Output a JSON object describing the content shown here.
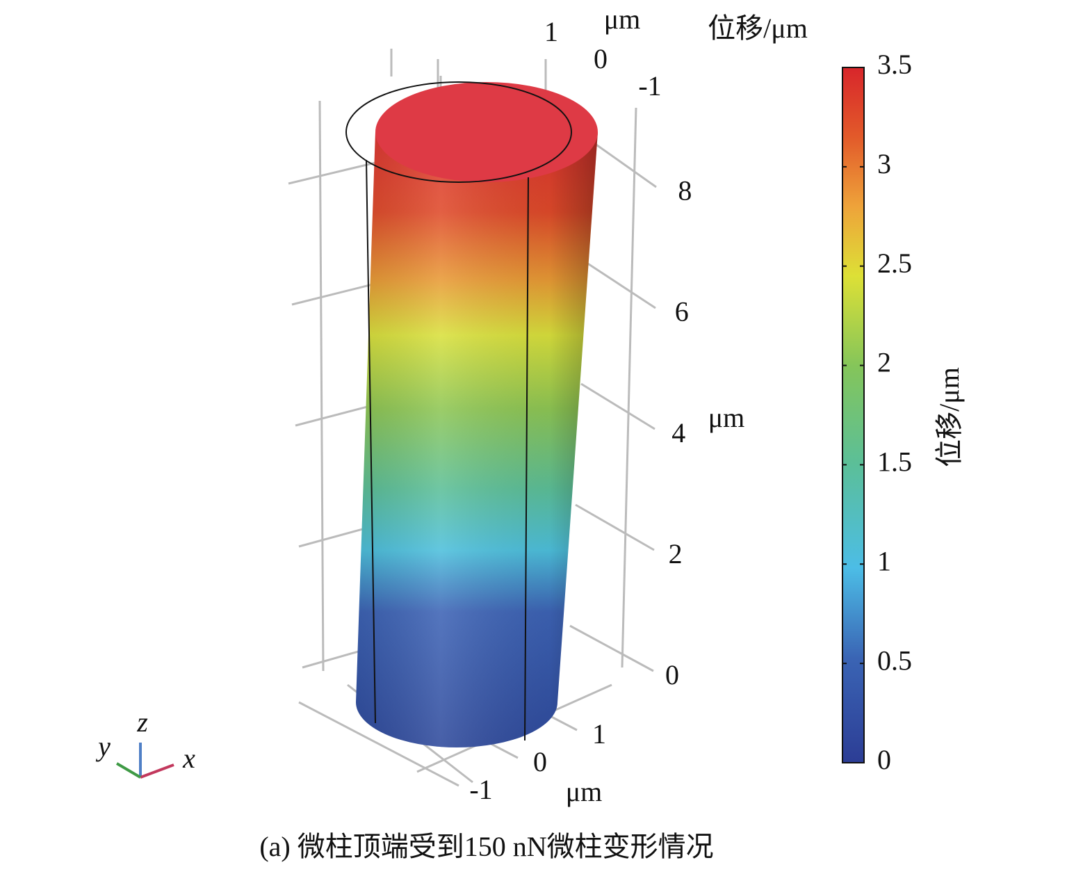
{
  "chart_data": {
    "type": "surface",
    "title": "位移/μm",
    "caption": "(a) 微柱顶端受到150 nN微柱变形情况",
    "colorbar": {
      "label": "位移/μm",
      "lim": [
        0,
        3.5
      ],
      "ticks": [
        0,
        0.5,
        1,
        1.5,
        2,
        2.5,
        3,
        3.5
      ]
    },
    "zticks": [
      0,
      2,
      4,
      6,
      8
    ],
    "xticks": [
      -1,
      0,
      1
    ],
    "yticks": [
      1,
      0,
      -1
    ],
    "x_unit": "μm",
    "y_unit": "μm",
    "z_unit": "μm",
    "axis_names": [
      "x",
      "y",
      "z"
    ]
  }
}
